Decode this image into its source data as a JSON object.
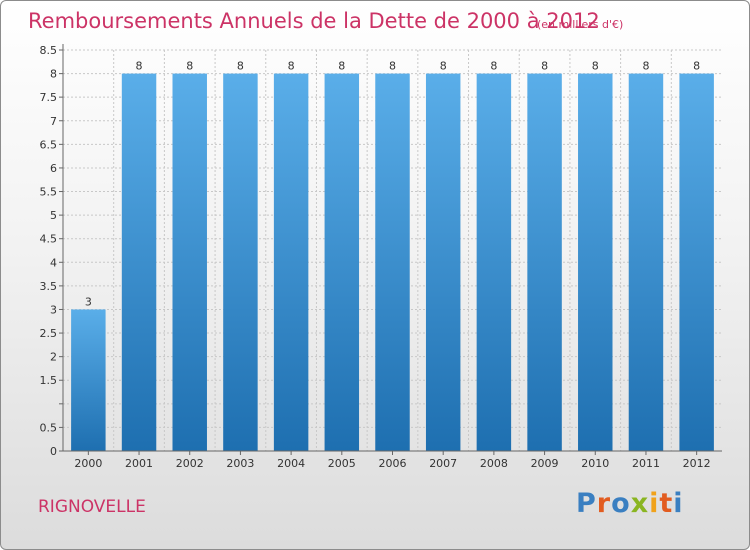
{
  "header": {
    "title": "Remboursements Annuels de la Dette de 2000 à 2012",
    "unit": "(en milliers d'€)"
  },
  "footer": {
    "commune": "RIGNOVELLE",
    "logo": "Proxiti"
  },
  "colors": {
    "title": "#cc3366",
    "bar_top": "#5aaee9",
    "bar_bottom": "#1e6fb0",
    "logo_letters": [
      "#3a7fc1",
      "#e25c20",
      "#3a7fc1",
      "#8ab521",
      "#f0a21b",
      "#e25c20",
      "#3a7fc1"
    ]
  },
  "chart_data": {
    "type": "bar",
    "title": "Remboursements Annuels de la Dette de 2000 à 2012",
    "xlabel": "",
    "ylabel": "",
    "categories": [
      "2000",
      "2001",
      "2002",
      "2003",
      "2004",
      "2005",
      "2006",
      "2007",
      "2008",
      "2009",
      "2010",
      "2011",
      "2012"
    ],
    "values": [
      3,
      8,
      8,
      8,
      8,
      8,
      8,
      8,
      8,
      8,
      8,
      8,
      8
    ],
    "data_labels": [
      "3",
      "8",
      "8",
      "8",
      "8",
      "8",
      "8",
      "8",
      "8",
      "8",
      "8",
      "8",
      "8"
    ],
    "ylim": [
      0,
      8.5
    ],
    "yticks": [
      0,
      0.5,
      1,
      1.5,
      2,
      2.5,
      3,
      3.5,
      4,
      4.5,
      5,
      5.5,
      6,
      6.5,
      7,
      7.5,
      8,
      8.5
    ],
    "ytick_labels": [
      "0",
      "0.5",
      "",
      "1.5",
      "2",
      "2.5",
      "3",
      "3.5",
      "4",
      "4.5",
      "5",
      "5.5",
      "6",
      "6.5",
      "7",
      "7.5",
      "8",
      "8.5"
    ],
    "grid": true
  }
}
